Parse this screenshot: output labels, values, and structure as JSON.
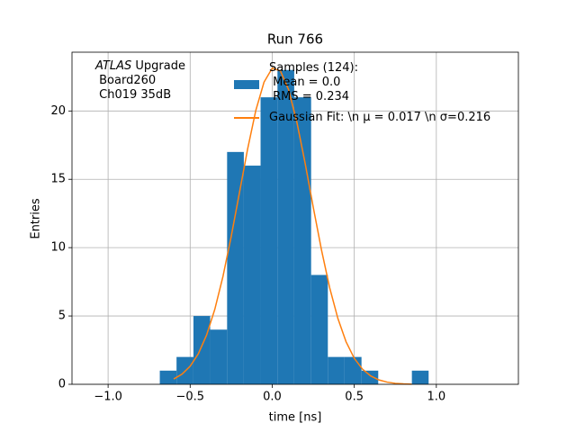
{
  "chart_data": {
    "type": "histogram",
    "title": "Run 766",
    "x_label": "time [ns]",
    "y_label": "Entries",
    "annotation": {
      "italic": "ATLAS",
      "text": " Upgrade\n Board260\n Ch019 35dB"
    },
    "xlim": [
      -1.22,
      1.5
    ],
    "ylim": [
      0,
      24.3
    ],
    "xticks": [
      {
        "value": -1.0,
        "label": "−1.0"
      },
      {
        "value": -0.5,
        "label": "−0.5"
      },
      {
        "value": 0.0,
        "label": "0.0"
      },
      {
        "value": 0.5,
        "label": "0.5"
      },
      {
        "value": 1.0,
        "label": "1.0"
      }
    ],
    "yticks": [
      0,
      5,
      10,
      15,
      20
    ],
    "grid": true,
    "histogram": {
      "name": "Samples (124):\n Mean = 0.0\n RMS = 0.234",
      "color": "#1f77b4",
      "bins": [
        -0.685,
        -0.583,
        -0.48,
        -0.378,
        -0.275,
        -0.173,
        -0.071,
        0.032,
        0.134,
        0.237,
        0.339,
        0.441,
        0.544,
        0.646,
        0.749,
        0.851,
        0.953
      ],
      "values": [
        1,
        2,
        5,
        4,
        17,
        16,
        21,
        23,
        21,
        8,
        2,
        2,
        1,
        0,
        0,
        1
      ]
    },
    "fit": {
      "name": "Gaussian Fit: \\n μ = 0.017 \\n σ=0.216",
      "color": "#ff7f0e",
      "x": [
        -0.6,
        -0.55,
        -0.5,
        -0.45,
        -0.4,
        -0.35,
        -0.3,
        -0.25,
        -0.2,
        -0.15,
        -0.1,
        -0.05,
        0.0,
        0.05,
        0.1,
        0.15,
        0.2,
        0.25,
        0.3,
        0.35,
        0.4,
        0.45,
        0.5,
        0.55,
        0.6,
        0.65,
        0.7,
        0.75,
        0.8,
        0.85
      ],
      "values": [
        0.39,
        0.74,
        1.32,
        2.24,
        3.6,
        5.48,
        7.9,
        10.81,
        14.0,
        17.21,
        20.04,
        22.11,
        23.13,
        22.93,
        21.55,
        19.19,
        16.21,
        12.96,
        9.84,
        7.07,
        4.82,
        3.11,
        1.9,
        1.11,
        0.61,
        0.32,
        0.16,
        0.07,
        0.03,
        0.01
      ]
    }
  }
}
